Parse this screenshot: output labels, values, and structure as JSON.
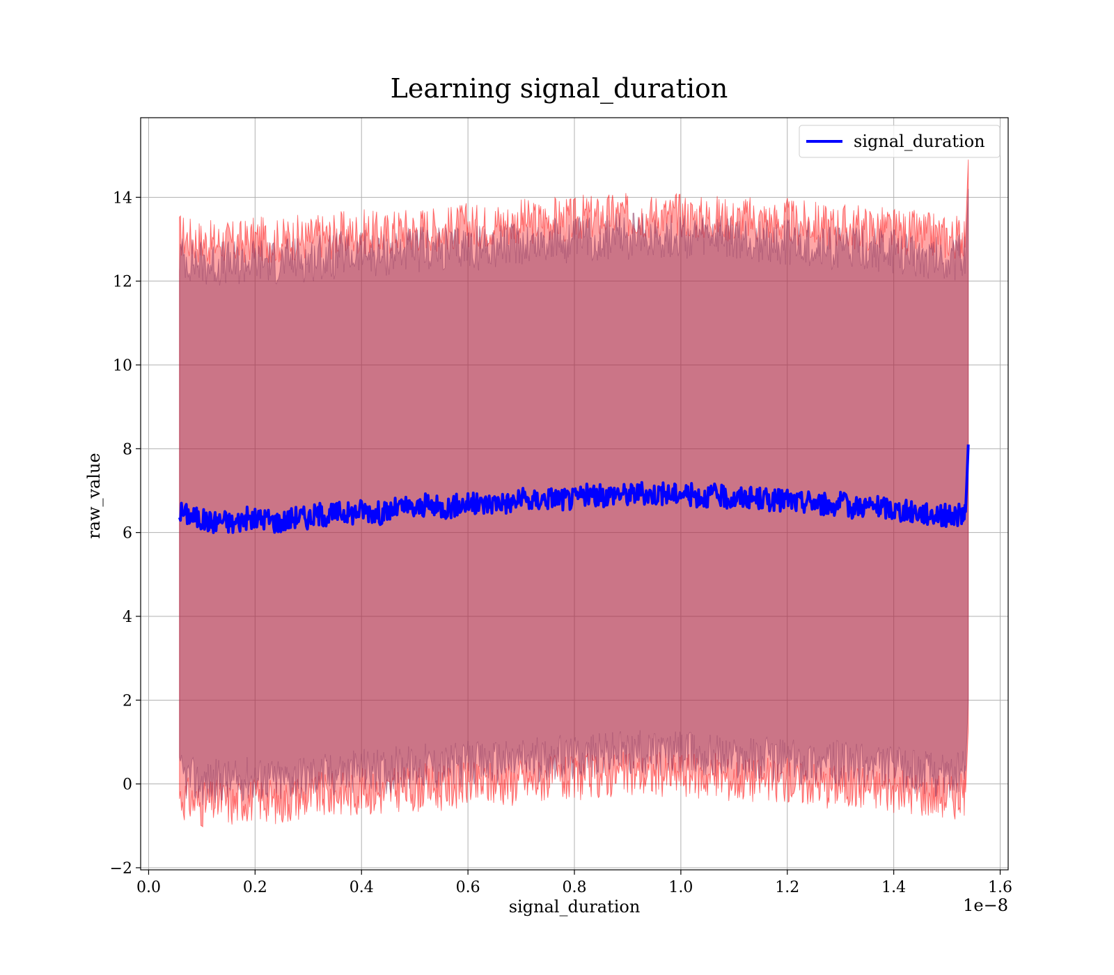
{
  "chart_data": {
    "type": "line",
    "title": "Learning signal_duration",
    "xlabel": "signal_duration",
    "ylabel": "raw_value",
    "x_offset_label": "1e−8",
    "xlim": [
      -0.015,
      1.615
    ],
    "ylim": [
      -2.05,
      15.9
    ],
    "x_ticks": [
      0.0,
      0.2,
      0.4,
      0.6,
      0.8,
      1.0,
      1.2,
      1.4,
      1.6
    ],
    "x_tick_labels": [
      "0.0",
      "0.2",
      "0.4",
      "0.6",
      "0.8",
      "1.0",
      "1.2",
      "1.4",
      "1.6"
    ],
    "y_ticks": [
      -2,
      0,
      2,
      4,
      6,
      8,
      10,
      12,
      14
    ],
    "y_tick_labels": [
      "−2",
      "0",
      "2",
      "4",
      "6",
      "8",
      "10",
      "12",
      "14"
    ],
    "grid": true,
    "legend_position": "top-right",
    "x_range_of_data": [
      0.058,
      1.54
    ],
    "series": [
      {
        "name": "signal_duration",
        "color": "#0000ff",
        "x": [
          0.058,
          0.08,
          0.1,
          0.12,
          0.14,
          0.16,
          0.18,
          0.2,
          0.22,
          0.24,
          0.26,
          0.28,
          0.3,
          0.32,
          0.34,
          0.36,
          0.38,
          0.4,
          0.42,
          0.44,
          0.46,
          0.48,
          0.5,
          0.52,
          0.54,
          0.56,
          0.58,
          0.6,
          0.62,
          0.64,
          0.66,
          0.68,
          0.7,
          0.72,
          0.74,
          0.76,
          0.78,
          0.8,
          0.82,
          0.84,
          0.86,
          0.88,
          0.9,
          0.92,
          0.94,
          0.96,
          0.98,
          1.0,
          1.02,
          1.04,
          1.06,
          1.08,
          1.1,
          1.12,
          1.14,
          1.16,
          1.18,
          1.2,
          1.22,
          1.24,
          1.26,
          1.28,
          1.3,
          1.32,
          1.34,
          1.36,
          1.38,
          1.4,
          1.42,
          1.44,
          1.46,
          1.48,
          1.5,
          1.52,
          1.535,
          1.54
        ],
        "values": [
          6.5,
          6.4,
          6.3,
          6.25,
          6.3,
          6.2,
          6.35,
          6.3,
          6.35,
          6.25,
          6.3,
          6.4,
          6.35,
          6.45,
          6.4,
          6.5,
          6.45,
          6.55,
          6.5,
          6.45,
          6.55,
          6.6,
          6.55,
          6.65,
          6.6,
          6.6,
          6.65,
          6.7,
          6.65,
          6.7,
          6.75,
          6.7,
          6.8,
          6.75,
          6.8,
          6.85,
          6.8,
          6.8,
          6.9,
          6.85,
          6.9,
          6.95,
          6.9,
          6.95,
          6.9,
          6.95,
          6.9,
          6.95,
          6.9,
          6.85,
          6.9,
          6.85,
          6.8,
          6.85,
          6.8,
          6.8,
          6.75,
          6.8,
          6.7,
          6.75,
          6.7,
          6.65,
          6.7,
          6.6,
          6.65,
          6.6,
          6.6,
          6.55,
          6.5,
          6.5,
          6.45,
          6.45,
          6.4,
          6.4,
          6.5,
          8.1
        ]
      }
    ],
    "bands": [
      {
        "color": "#ff0000",
        "upper": [
          13.1,
          13.0,
          12.95,
          12.9,
          12.95,
          12.9,
          12.95,
          13.0,
          13.0,
          12.95,
          13.0,
          13.05,
          13.0,
          13.1,
          13.05,
          13.15,
          13.1,
          13.2,
          13.15,
          13.1,
          13.2,
          13.25,
          13.2,
          13.3,
          13.25,
          13.25,
          13.3,
          13.35,
          13.3,
          13.35,
          13.4,
          13.35,
          13.45,
          13.4,
          13.45,
          13.5,
          13.45,
          13.45,
          13.55,
          13.5,
          13.55,
          13.6,
          13.55,
          13.6,
          13.55,
          13.6,
          13.55,
          13.6,
          13.55,
          13.5,
          13.55,
          13.5,
          13.45,
          13.5,
          13.45,
          13.45,
          13.4,
          13.45,
          13.35,
          13.4,
          13.35,
          13.3,
          13.35,
          13.25,
          13.3,
          13.25,
          13.25,
          13.2,
          13.15,
          13.15,
          13.1,
          13.1,
          13.05,
          13.05,
          13.15,
          14.9
        ],
        "lower": [
          -0.3,
          -0.4,
          -0.5,
          -0.45,
          -0.4,
          -0.5,
          -0.35,
          -0.4,
          -0.35,
          -0.45,
          -0.4,
          -0.3,
          -0.35,
          -0.25,
          -0.3,
          -0.2,
          -0.25,
          -0.15,
          -0.2,
          -0.25,
          -0.15,
          -0.1,
          -0.15,
          -0.05,
          -0.1,
          -0.1,
          -0.05,
          0.0,
          -0.05,
          0.0,
          0.05,
          0.0,
          0.1,
          0.05,
          0.1,
          0.15,
          0.1,
          0.1,
          0.2,
          0.15,
          0.2,
          0.25,
          0.2,
          0.25,
          0.2,
          0.25,
          0.2,
          0.25,
          0.2,
          0.15,
          0.2,
          0.15,
          0.1,
          0.15,
          0.1,
          0.1,
          0.05,
          0.1,
          0.0,
          0.05,
          0.0,
          -0.05,
          0.0,
          -0.1,
          -0.05,
          -0.1,
          -0.1,
          -0.15,
          -0.2,
          -0.2,
          -0.25,
          -0.25,
          -0.3,
          -0.3,
          -0.2,
          1.3
        ]
      },
      {
        "color": "#8b3a62",
        "upper": [
          12.6,
          12.5,
          12.45,
          12.4,
          12.45,
          12.4,
          12.45,
          12.5,
          12.5,
          12.45,
          12.5,
          12.55,
          12.5,
          12.6,
          12.55,
          12.65,
          12.6,
          12.7,
          12.65,
          12.6,
          12.7,
          12.75,
          12.7,
          12.8,
          12.75,
          12.75,
          12.8,
          12.85,
          12.8,
          12.85,
          12.9,
          12.85,
          12.95,
          12.9,
          12.95,
          13.0,
          12.95,
          12.95,
          13.05,
          13.0,
          13.05,
          13.1,
          13.05,
          13.1,
          13.05,
          13.1,
          13.05,
          13.1,
          13.05,
          13.0,
          13.05,
          13.0,
          12.95,
          13.0,
          12.95,
          12.95,
          12.9,
          12.95,
          12.85,
          12.9,
          12.85,
          12.8,
          12.85,
          12.75,
          12.8,
          12.75,
          12.75,
          12.7,
          12.65,
          12.65,
          12.6,
          12.6,
          12.55,
          12.55,
          12.65,
          14.2
        ],
        "lower": [
          0.2,
          0.1,
          0.0,
          0.05,
          0.1,
          0.0,
          0.15,
          0.1,
          0.15,
          0.05,
          0.1,
          0.2,
          0.15,
          0.25,
          0.2,
          0.3,
          0.25,
          0.35,
          0.3,
          0.25,
          0.35,
          0.4,
          0.35,
          0.45,
          0.4,
          0.4,
          0.45,
          0.5,
          0.45,
          0.5,
          0.55,
          0.5,
          0.6,
          0.55,
          0.6,
          0.65,
          0.6,
          0.6,
          0.7,
          0.65,
          0.7,
          0.75,
          0.7,
          0.75,
          0.7,
          0.75,
          0.7,
          0.75,
          0.7,
          0.65,
          0.7,
          0.65,
          0.6,
          0.65,
          0.6,
          0.6,
          0.55,
          0.6,
          0.5,
          0.55,
          0.5,
          0.45,
          0.5,
          0.4,
          0.45,
          0.4,
          0.4,
          0.35,
          0.3,
          0.3,
          0.25,
          0.25,
          0.2,
          0.2,
          0.3,
          2.0
        ]
      }
    ]
  }
}
